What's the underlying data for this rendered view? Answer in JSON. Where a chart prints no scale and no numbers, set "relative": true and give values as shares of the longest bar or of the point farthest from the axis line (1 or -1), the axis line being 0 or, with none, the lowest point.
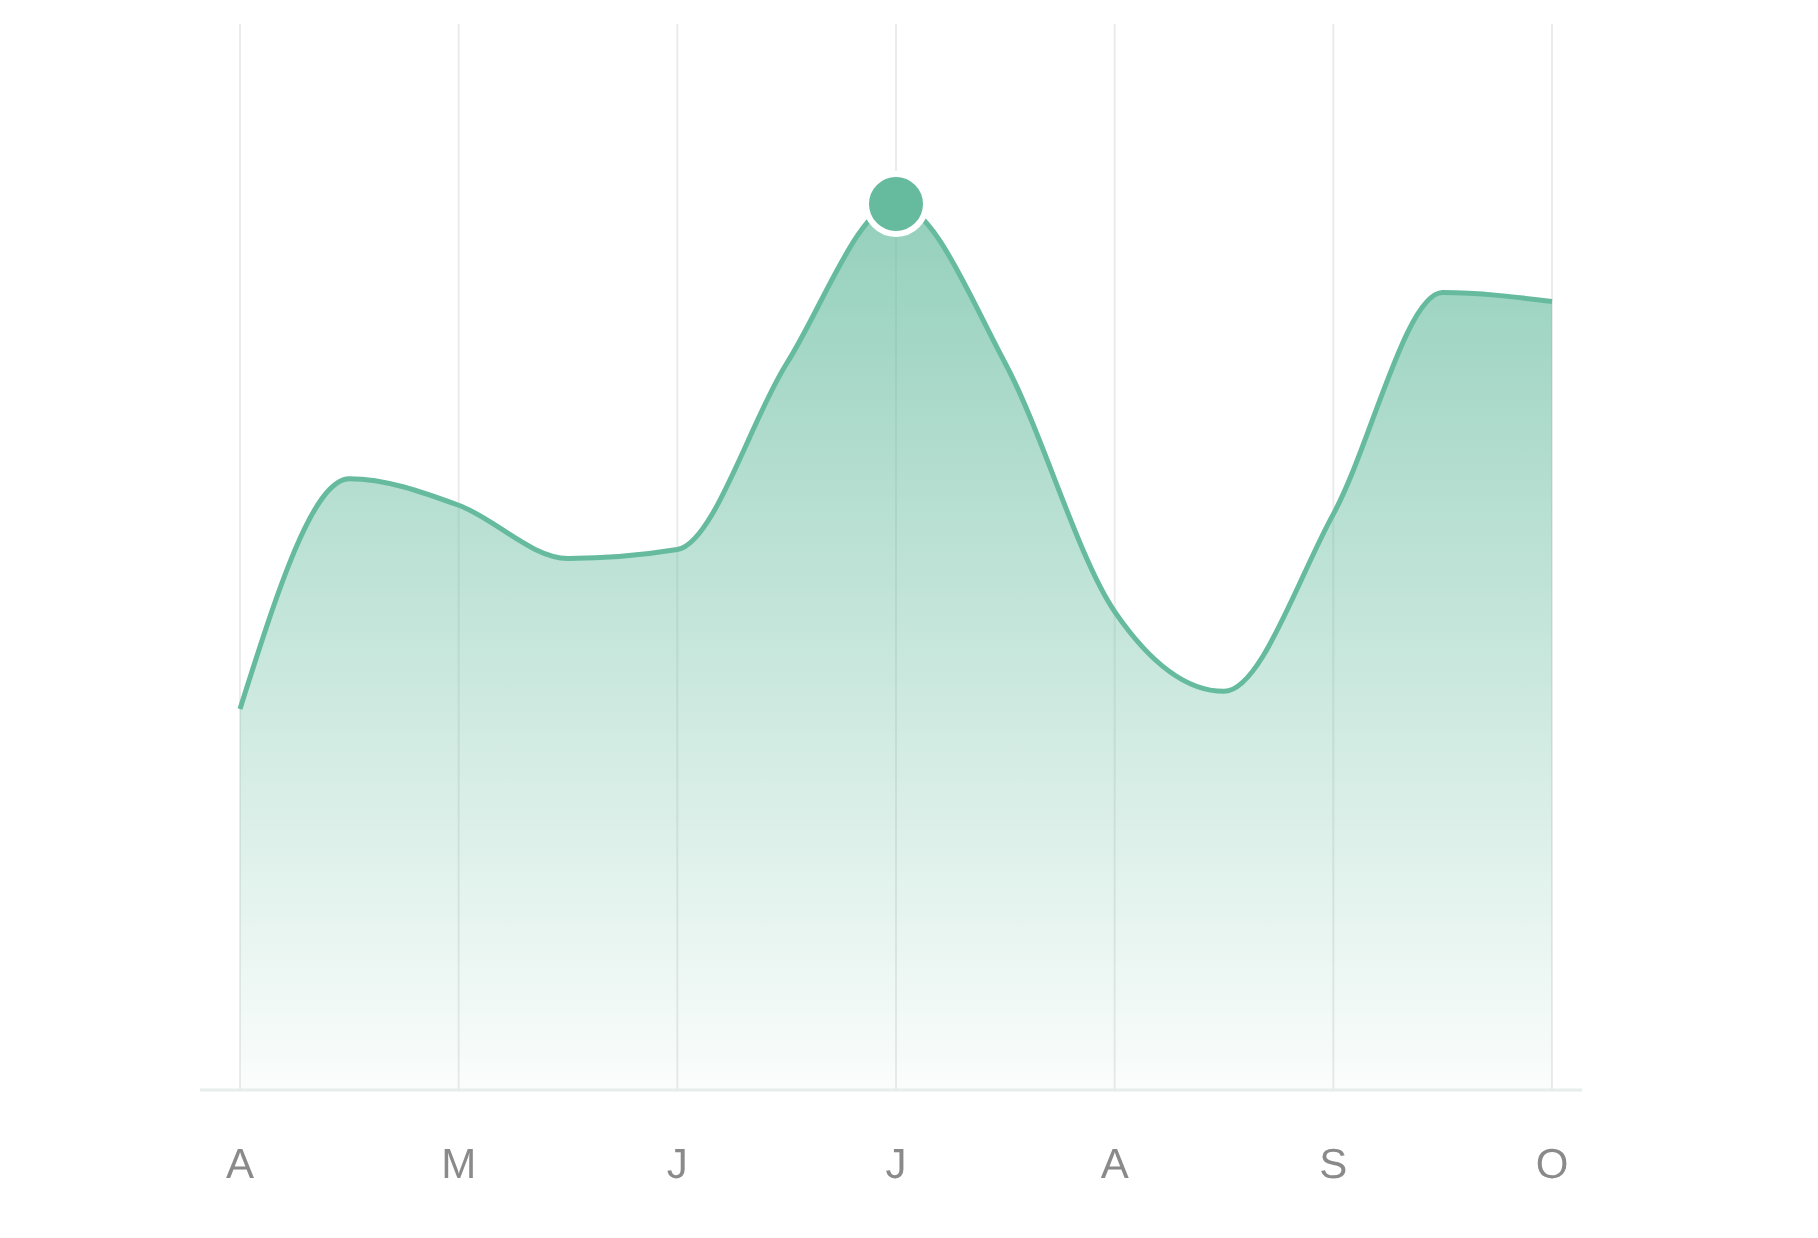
{
  "chart_data": {
    "type": "area",
    "relative": true,
    "categories": [
      "A",
      null,
      "M",
      null,
      "J",
      null,
      "J",
      null,
      "A",
      null,
      "S",
      null,
      "O"
    ],
    "grid": "x",
    "marker": "none",
    "line_style": "solid",
    "series": [
      {
        "color": "#66bb9f",
        "values": [
          0.43,
          0.69,
          0.66,
          0.6,
          0.61,
          0.82,
          1,
          0.82,
          0.54,
          0.45,
          0.65,
          0.9,
          0.89
        ]
      },
      {
        "type": "scatter",
        "color": "#66bb9f",
        "marker": "circle",
        "values": [
          null,
          null,
          null,
          null,
          null,
          null,
          1,
          null,
          null,
          null,
          null,
          null,
          null
        ]
      }
    ]
  }
}
